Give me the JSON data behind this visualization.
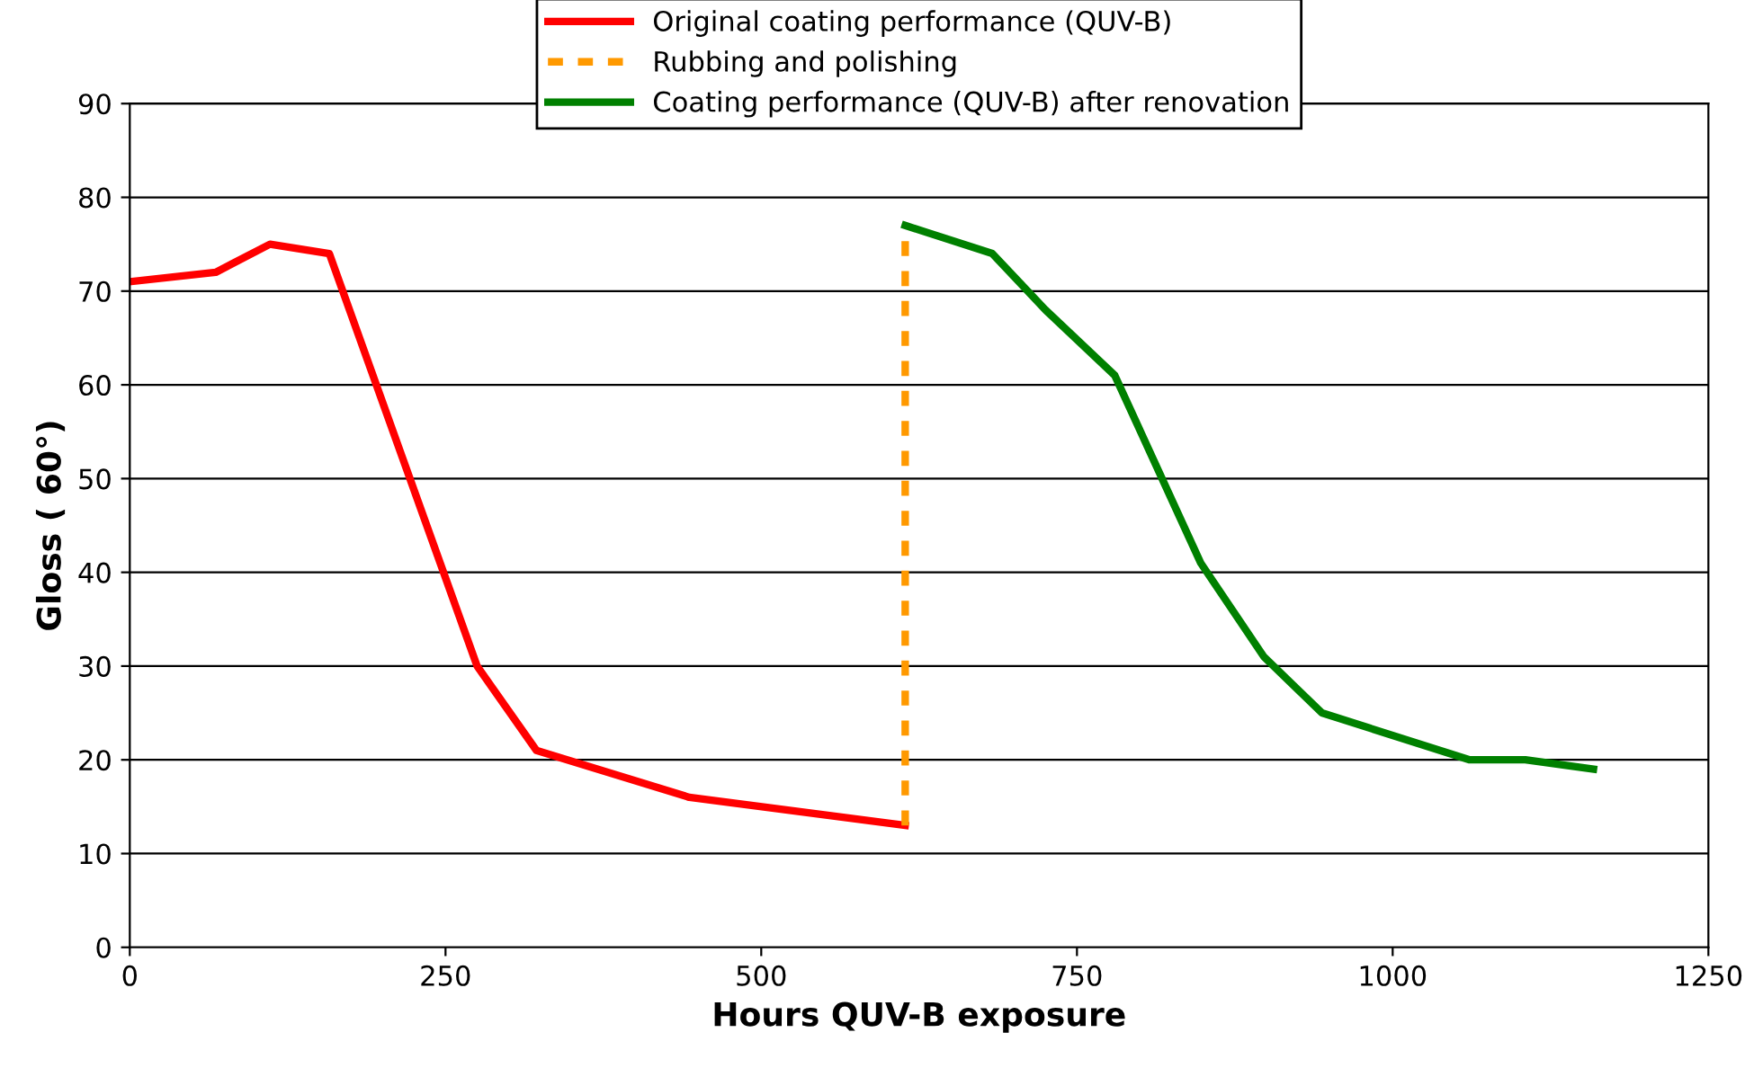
{
  "chart_data": {
    "type": "line",
    "xlabel": "Hours QUV-B exposure",
    "ylabel": "Gloss ( 60°)",
    "xlim": [
      0,
      1250
    ],
    "xticks": [
      0,
      250,
      500,
      750,
      1000,
      1250
    ],
    "ylim": [
      0,
      90
    ],
    "yticks": [
      0,
      10,
      20,
      30,
      40,
      50,
      60,
      70,
      80,
      90
    ],
    "grid": "y",
    "legend": "top",
    "line_style": "solid",
    "marker": "none",
    "series": [
      {
        "name": "Original coating performance (QUV-B)",
        "color": "#ff0000",
        "x": [
          0,
          68,
          111,
          158,
          275,
          322,
          443,
          614
        ],
        "values": [
          71,
          72,
          75,
          74,
          30,
          21,
          16,
          13
        ]
      },
      {
        "name": "Rubbing and polishing",
        "color": "#ff9900",
        "line_style": "dashed",
        "x": [
          614,
          614
        ],
        "values": [
          13,
          76
        ]
      },
      {
        "name": "Coating performance (QUV-B) after renovation",
        "color": "#008000",
        "x": [
          614,
          683,
          725,
          780,
          848,
          898,
          944,
          1061,
          1105,
          1159
        ],
        "values": [
          77,
          74,
          68,
          61,
          41,
          31,
          25,
          20,
          20,
          19
        ]
      }
    ]
  }
}
